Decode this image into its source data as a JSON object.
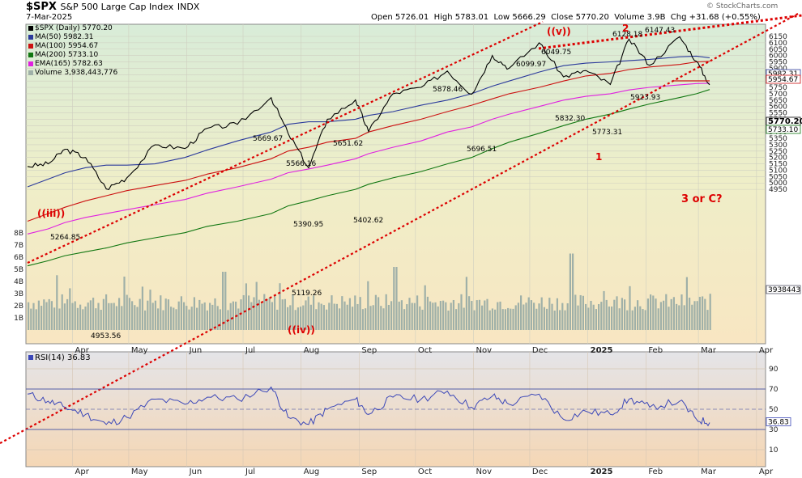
{
  "header": {
    "symbol": "$SPX",
    "name": "S&P 500 Large Cap Index",
    "exchange": "INDX",
    "date": "7-Mar-2025",
    "open_label": "Open",
    "open": "5726.01",
    "high_label": "High",
    "high": "5783.01",
    "low_label": "Low",
    "low": "5666.29",
    "close_label": "Close",
    "close": "5770.20",
    "volume_label": "Volume",
    "volume": "3.9B",
    "chg_label": "Chg",
    "chg": "+31.68 (+0.55%)",
    "brand": "© StockCharts.com"
  },
  "legend": [
    {
      "label": "$SPX (Daily) 5770.20",
      "color": "#000000"
    },
    {
      "label": "MA(50) 5982.31",
      "color": "#2b3a9c"
    },
    {
      "label": "MA(100) 5954.67",
      "color": "#cc1111"
    },
    {
      "label": "MA(200) 5733.10",
      "color": "#117711"
    },
    {
      "label": "EMA(165) 5782.63",
      "color": "#e020e0"
    },
    {
      "label": "Volume 3,938,443,776",
      "color": "#9fb0a8"
    }
  ],
  "rsi_legend": "RSI(14) 36.83",
  "colors": {
    "price": "#000000",
    "ma50": "#2b3a9c",
    "ma100": "#cc1111",
    "ma200": "#117711",
    "ema165": "#e020e0",
    "wave": "#dd0000",
    "rsi": "#3b47b8"
  },
  "chart_data": [
    {
      "type": "line",
      "x": [
        "2024-03-08",
        "2024-03-19",
        "2024-03-28",
        "2024-04-08",
        "2024-04-19",
        "2024-04-30",
        "2024-05-15",
        "2024-05-31",
        "2024-06-12",
        "2024-06-28",
        "2024-07-16",
        "2024-07-25",
        "2024-08-05",
        "2024-08-15",
        "2024-08-30",
        "2024-09-06",
        "2024-09-19",
        "2024-10-04",
        "2024-10-18",
        "2024-10-31",
        "2024-11-11",
        "2024-11-20",
        "2024-12-06",
        "2024-12-19",
        "2024-12-31",
        "2025-01-13",
        "2025-01-23",
        "2025-02-03",
        "2025-02-19",
        "2025-02-28",
        "2025-03-07"
      ],
      "series": [
        {
          "name": "$SPX (Daily)",
          "values": [
            5130,
            5150,
            5264.85,
            5200,
            4953.56,
            5040,
            5300,
            5270,
            5430,
            5460,
            5669.67,
            5390.95,
            5119.26,
            5500,
            5651.62,
            5402.62,
            5700,
            5750,
            5878.46,
            5696.51,
            6000,
            5900,
            6099.97,
            5832.3,
            5882,
            5773.31,
            6128.18,
            5923.93,
            6147.43,
            5954,
            5770.2
          ]
        },
        {
          "name": "MA(50)",
          "values": [
            4970,
            5030,
            5080,
            5120,
            5140,
            5140,
            5150,
            5200,
            5260,
            5330,
            5400,
            5460,
            5480,
            5480,
            5500,
            5530,
            5560,
            5610,
            5650,
            5700,
            5760,
            5800,
            5870,
            5920,
            5940,
            5950,
            5960,
            5970,
            5990,
            5995,
            5982.31
          ]
        },
        {
          "name": "MA(100)",
          "values": [
            4700,
            4760,
            4810,
            4860,
            4900,
            4940,
            4980,
            5020,
            5070,
            5120,
            5190,
            5250,
            5280,
            5320,
            5350,
            5400,
            5450,
            5500,
            5560,
            5610,
            5660,
            5700,
            5750,
            5800,
            5840,
            5860,
            5890,
            5910,
            5930,
            5950,
            5954.67
          ]
        },
        {
          "name": "MA(200)",
          "values": [
            4350,
            4390,
            4430,
            4460,
            4490,
            4530,
            4570,
            4610,
            4660,
            4700,
            4760,
            4820,
            4860,
            4900,
            4950,
            4990,
            5040,
            5090,
            5150,
            5200,
            5270,
            5320,
            5390,
            5450,
            5500,
            5540,
            5580,
            5620,
            5670,
            5700,
            5733.1
          ]
        },
        {
          "name": "EMA(165)",
          "values": [
            4600,
            4640,
            4690,
            4730,
            4760,
            4790,
            4830,
            4870,
            4920,
            4970,
            5030,
            5080,
            5110,
            5140,
            5190,
            5230,
            5280,
            5330,
            5400,
            5440,
            5500,
            5540,
            5600,
            5650,
            5680,
            5700,
            5730,
            5750,
            5770,
            5780,
            5782.63
          ]
        }
      ],
      "yticks": [
        "4950",
        "5000",
        "5050",
        "5100",
        "5150",
        "5200",
        "5250",
        "5300",
        "5350",
        "5400",
        "5450",
        "5500",
        "5550",
        "5600",
        "5650",
        "5700",
        "5750",
        "5800",
        "5850",
        "5900",
        "5950",
        "6000",
        "6050",
        "6100",
        "6150"
      ],
      "volume_ticks": [
        "1B",
        "2B",
        "3B",
        "4B",
        "5B",
        "6B",
        "7B",
        "8B"
      ],
      "x_labels": [
        "Apr",
        "May",
        "Jun",
        "Jul",
        "Aug",
        "Sep",
        "Oct",
        "Nov",
        "Dec",
        "2025",
        "Feb",
        "Mar",
        "Apr"
      ],
      "price_labels": [
        "5264.85",
        "4953.56",
        "5669.67",
        "5566.16",
        "5390.95",
        "5119.26",
        "5651.62",
        "5402.62",
        "5878.46",
        "5696.51",
        "6099.97",
        "6049.75",
        "5832.30",
        "5773.31",
        "6128.18",
        "5923.93",
        "6147.43"
      ],
      "wave_labels": [
        "((iii))",
        "((iv))",
        "((v))",
        "1",
        "2",
        "3 or C?"
      ],
      "right_labels": [
        "5982.31",
        "5954.67",
        "5770.20",
        "5733.10",
        "3938443"
      ]
    },
    {
      "type": "line",
      "series": [
        {
          "name": "RSI(14)",
          "values": [
            65,
            58,
            52,
            45,
            35,
            42,
            60,
            55,
            62,
            60,
            72,
            42,
            35,
            50,
            60,
            45,
            62,
            60,
            68,
            52,
            63,
            55,
            65,
            40,
            48,
            45,
            60,
            52,
            58,
            40,
            36.83
          ]
        }
      ],
      "yticks": [
        "10",
        "30",
        "50",
        "70",
        "90"
      ],
      "last_value": "36.83"
    }
  ]
}
